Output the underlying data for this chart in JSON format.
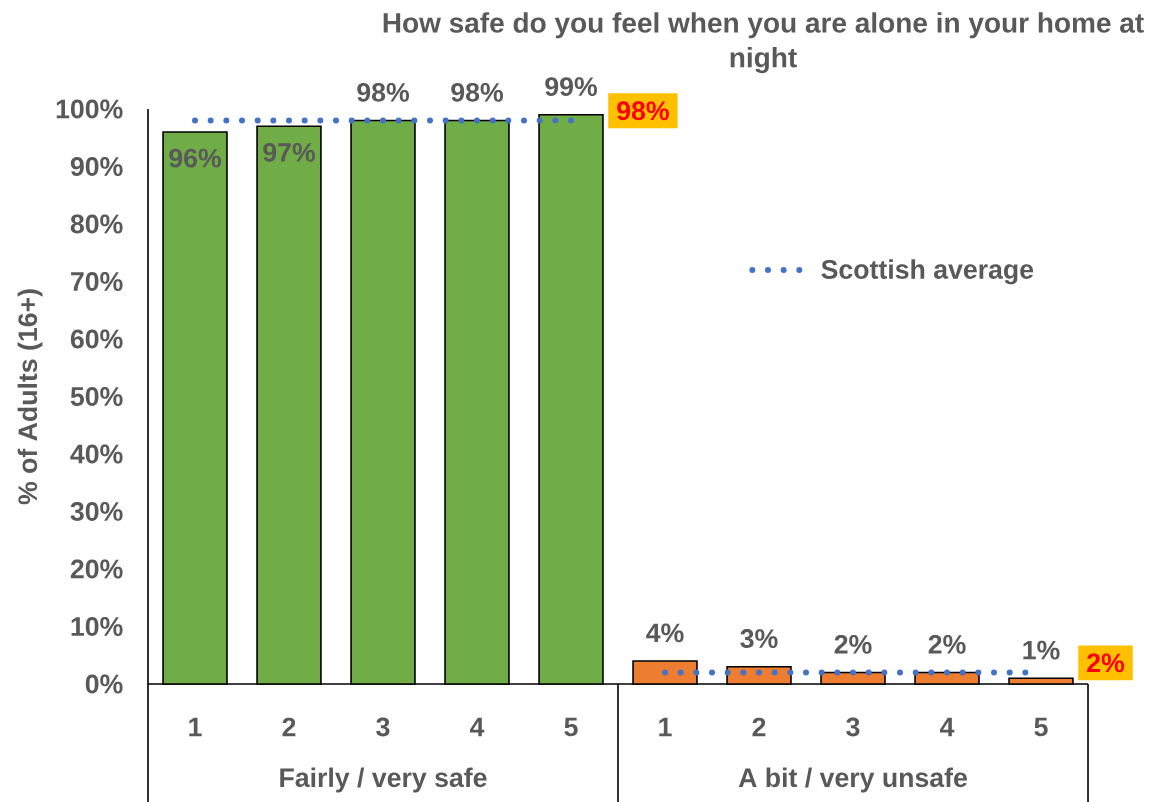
{
  "chart_data": {
    "type": "bar",
    "title": "How safe do you feel when you are alone in your home at night",
    "ylabel": "% of Adults (16+)",
    "categories": [
      "1",
      "2",
      "3",
      "4",
      "5",
      "1",
      "2",
      "3",
      "4",
      "5"
    ],
    "series": [
      {
        "colors": [
          "#70ad47",
          "#70ad47",
          "#70ad47",
          "#70ad47",
          "#70ad47",
          "#ed7d31",
          "#ed7d31",
          "#ed7d31",
          "#ed7d31",
          "#ed7d31"
        ],
        "values": [
          96,
          97,
          98,
          98,
          99,
          4,
          3,
          2,
          2,
          1
        ],
        "value_labels": [
          "96%",
          "97%",
          "98%",
          "98%",
          "99%",
          "4%",
          "3%",
          "2%",
          "2%",
          "1%"
        ]
      },
      {
        "name": "Scottish average",
        "type": "line",
        "color": "#4472c4",
        "line_style": "dotted",
        "values": [
          98,
          98,
          98,
          98,
          98,
          null,
          null,
          null,
          null,
          null
        ],
        "value_labels": [
          null,
          null,
          null,
          null,
          "98%",
          null,
          null,
          null,
          null,
          null
        ]
      },
      {
        "type": "line",
        "color": "#4472c4",
        "line_style": "dotted",
        "values": [
          null,
          null,
          null,
          null,
          null,
          2,
          2,
          2,
          2,
          2
        ],
        "value_labels": [
          null,
          null,
          null,
          null,
          null,
          null,
          null,
          null,
          null,
          "2%"
        ]
      }
    ],
    "ylim": [
      0,
      100
    ],
    "yticks": [
      {
        "value": 0,
        "label": "0%"
      },
      {
        "value": 10,
        "label": "10%"
      },
      {
        "value": 20,
        "label": "20%"
      },
      {
        "value": 30,
        "label": "30%"
      },
      {
        "value": 40,
        "label": "40%"
      },
      {
        "value": 50,
        "label": "50%"
      },
      {
        "value": 60,
        "label": "60%"
      },
      {
        "value": 70,
        "label": "70%"
      },
      {
        "value": 80,
        "label": "80%"
      },
      {
        "value": 90,
        "label": "90%"
      },
      {
        "value": 100,
        "label": "100%"
      }
    ],
    "legend": "right",
    "annotations": [
      "Fairly / very safe",
      "A bit / very unsafe"
    ]
  }
}
